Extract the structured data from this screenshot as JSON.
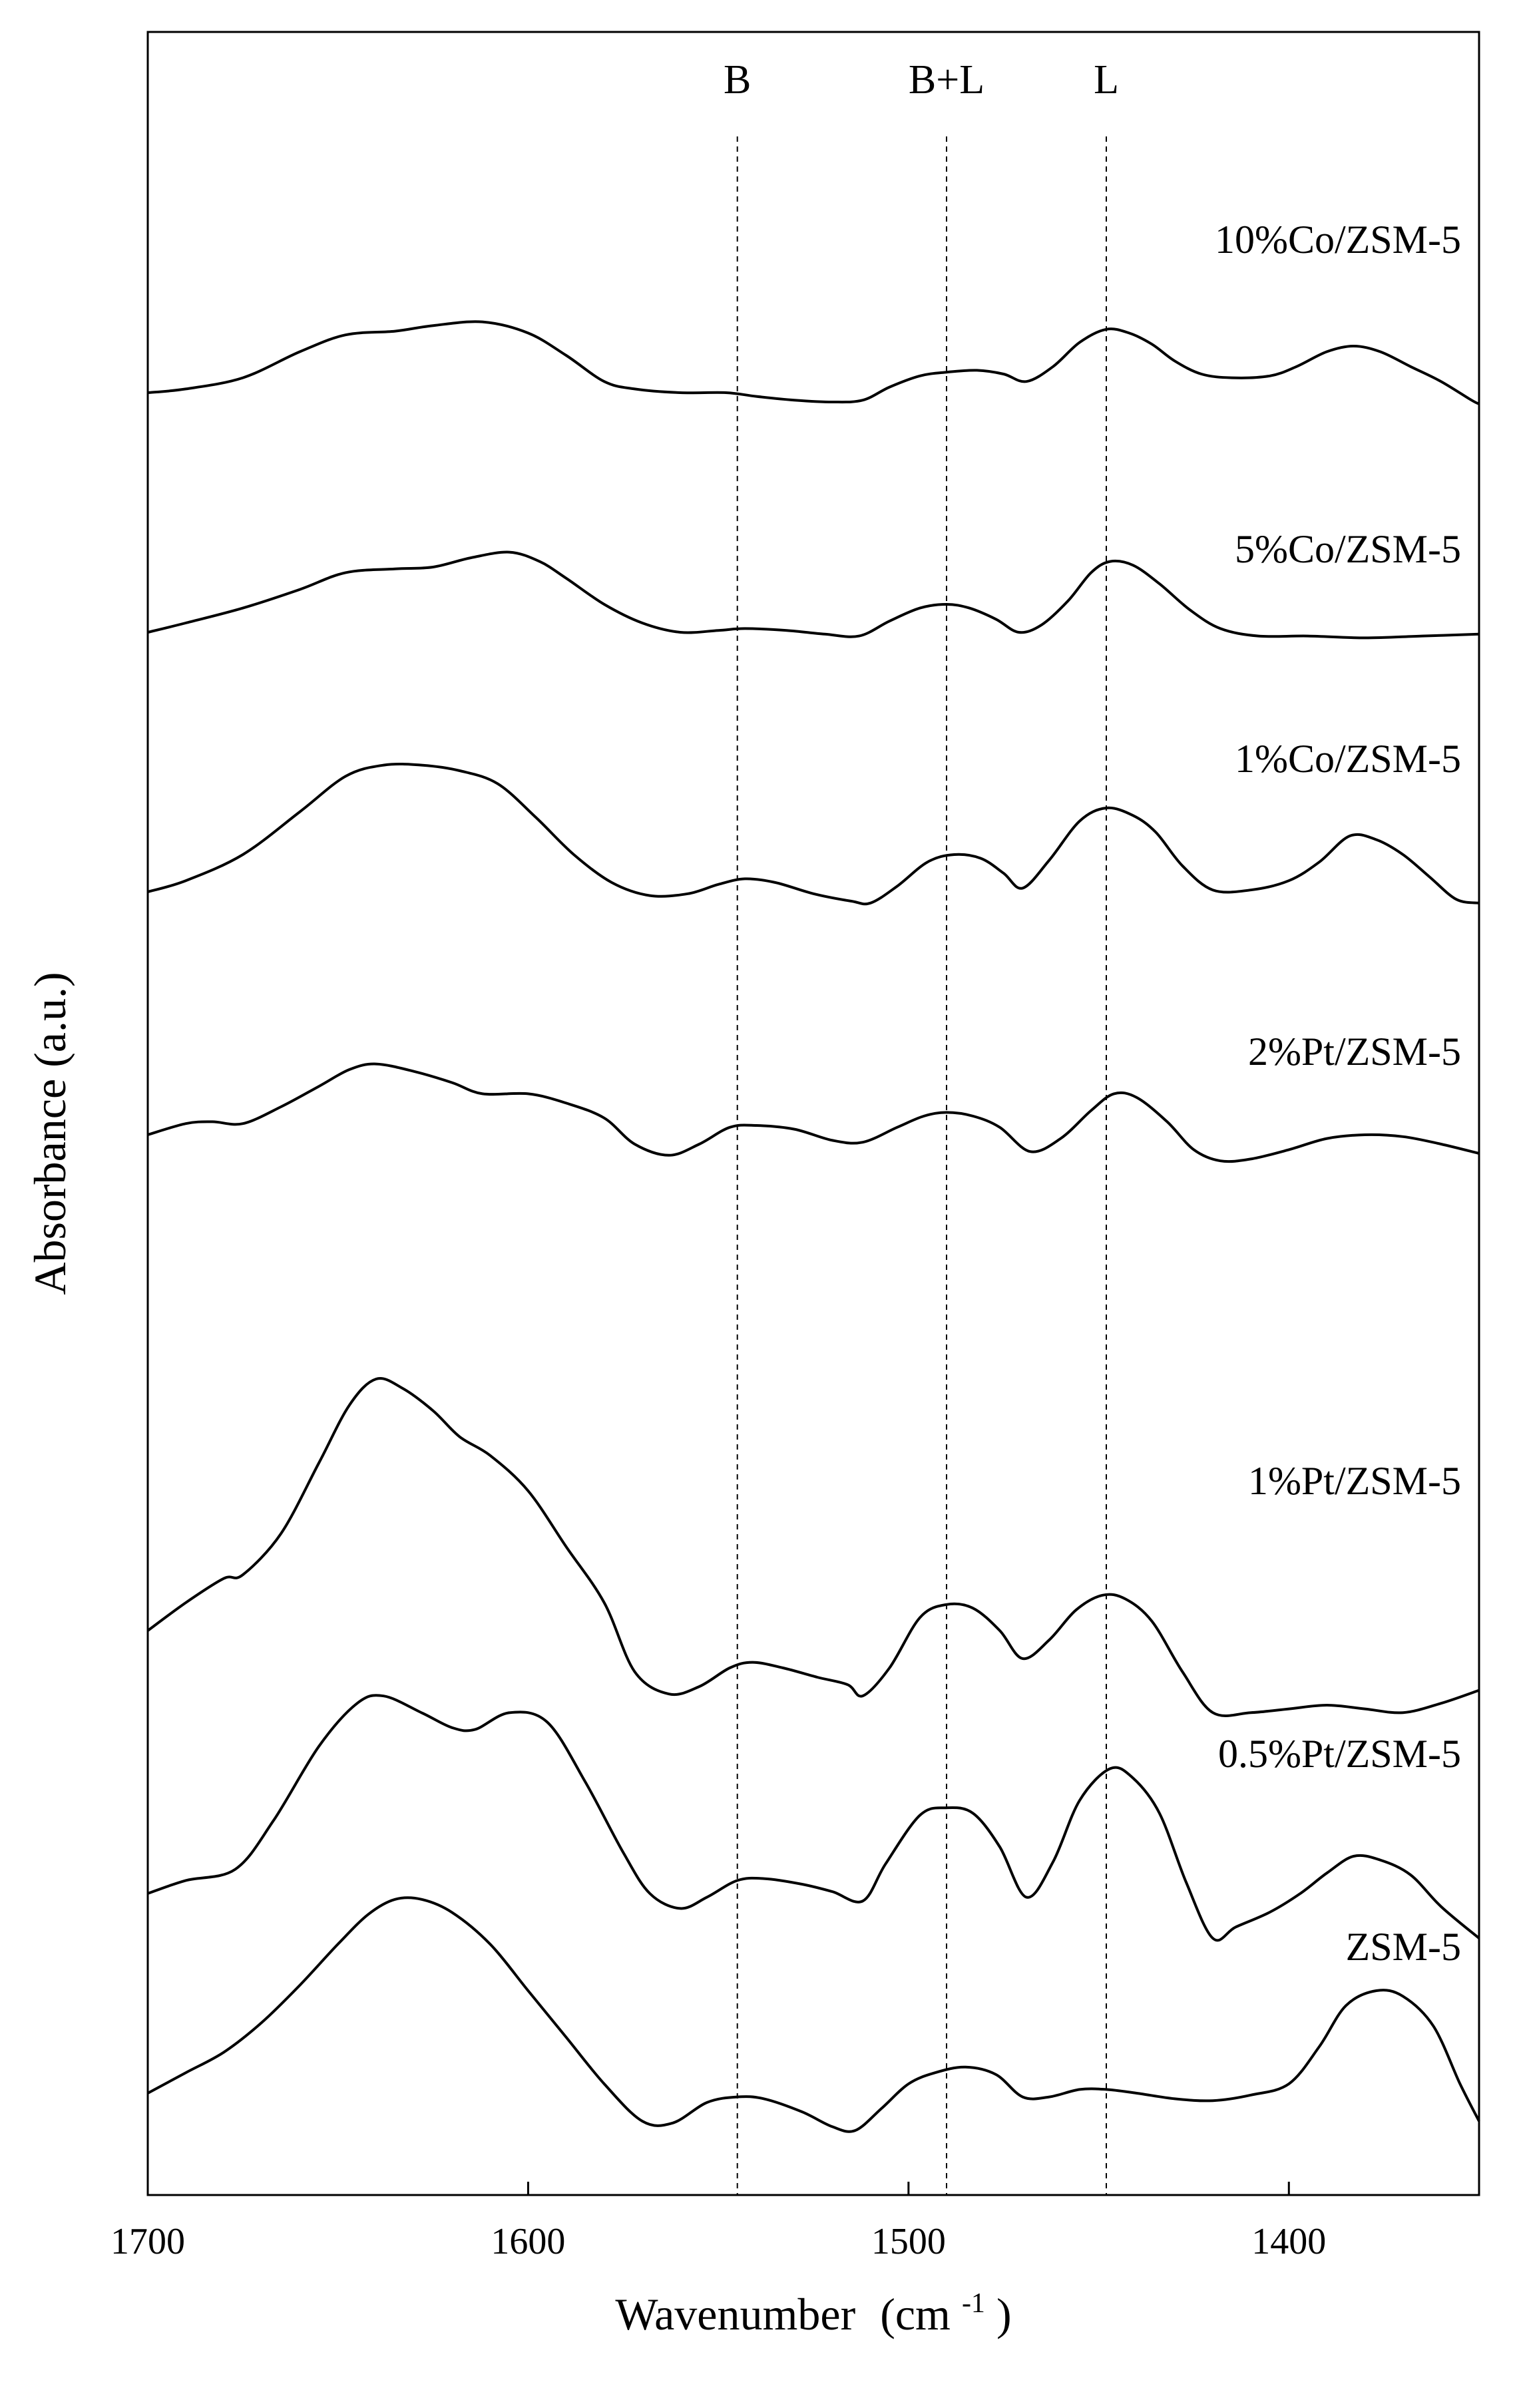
{
  "chart_data": {
    "type": "line",
    "title": "",
    "xlabel": "Wavenumber",
    "xlabel_unit_base": "(cm",
    "xlabel_unit_exp": "-1",
    "xlabel_unit_close": ")",
    "ylabel": "Absorbance (a.u.)",
    "xlim": [
      1700,
      1350
    ],
    "x_reversed": true,
    "yticks_shown": false,
    "xticks": [
      1700,
      1600,
      1500,
      1400
    ],
    "xtick_labels": [
      "1700",
      "1600",
      "1500",
      "1400"
    ],
    "reference_lines": [
      {
        "label": "B",
        "x": 1545
      },
      {
        "label": "B+L",
        "x": 1490
      },
      {
        "label": "L",
        "x": 1448
      }
    ],
    "series": [
      {
        "name": "10%Co/ZSM-5",
        "offset": 6,
        "points": [
          [
            1700,
            0.0
          ],
          [
            1690,
            0.02
          ],
          [
            1675,
            0.08
          ],
          [
            1660,
            0.22
          ],
          [
            1648,
            0.31
          ],
          [
            1635,
            0.33
          ],
          [
            1625,
            0.36
          ],
          [
            1612,
            0.38
          ],
          [
            1600,
            0.32
          ],
          [
            1590,
            0.2
          ],
          [
            1580,
            0.06
          ],
          [
            1572,
            0.02
          ],
          [
            1560,
            0.0
          ],
          [
            1548,
            0.0
          ],
          [
            1540,
            -0.02
          ],
          [
            1530,
            -0.04
          ],
          [
            1520,
            -0.05
          ],
          [
            1512,
            -0.04
          ],
          [
            1505,
            0.03
          ],
          [
            1497,
            0.09
          ],
          [
            1490,
            0.11
          ],
          [
            1482,
            0.12
          ],
          [
            1475,
            0.1
          ],
          [
            1469,
            0.06
          ],
          [
            1462,
            0.14
          ],
          [
            1455,
            0.27
          ],
          [
            1448,
            0.34
          ],
          [
            1442,
            0.32
          ],
          [
            1436,
            0.26
          ],
          [
            1430,
            0.17
          ],
          [
            1423,
            0.1
          ],
          [
            1415,
            0.08
          ],
          [
            1405,
            0.09
          ],
          [
            1398,
            0.14
          ],
          [
            1390,
            0.22
          ],
          [
            1383,
            0.25
          ],
          [
            1376,
            0.22
          ],
          [
            1368,
            0.14
          ],
          [
            1360,
            0.06
          ],
          [
            1352,
            -0.04
          ],
          [
            1350,
            -0.06
          ]
        ]
      },
      {
        "name": "5%Co/ZSM-5",
        "offset": 5,
        "points": [
          [
            1700,
            0.0
          ],
          [
            1690,
            0.05
          ],
          [
            1675,
            0.13
          ],
          [
            1660,
            0.23
          ],
          [
            1648,
            0.32
          ],
          [
            1635,
            0.34
          ],
          [
            1625,
            0.35
          ],
          [
            1615,
            0.4
          ],
          [
            1605,
            0.43
          ],
          [
            1597,
            0.38
          ],
          [
            1590,
            0.29
          ],
          [
            1580,
            0.15
          ],
          [
            1570,
            0.05
          ],
          [
            1560,
            0.0
          ],
          [
            1550,
            0.01
          ],
          [
            1543,
            0.02
          ],
          [
            1532,
            0.01
          ],
          [
            1522,
            -0.01
          ],
          [
            1513,
            -0.02
          ],
          [
            1505,
            0.06
          ],
          [
            1497,
            0.13
          ],
          [
            1490,
            0.15
          ],
          [
            1484,
            0.13
          ],
          [
            1477,
            0.07
          ],
          [
            1471,
            0.0
          ],
          [
            1465,
            0.04
          ],
          [
            1458,
            0.17
          ],
          [
            1452,
            0.32
          ],
          [
            1447,
            0.38
          ],
          [
            1441,
            0.36
          ],
          [
            1434,
            0.26
          ],
          [
            1426,
            0.12
          ],
          [
            1418,
            0.02
          ],
          [
            1408,
            -0.02
          ],
          [
            1395,
            -0.02
          ],
          [
            1380,
            -0.03
          ],
          [
            1365,
            -0.02
          ],
          [
            1350,
            -0.01
          ]
        ]
      },
      {
        "name": "1%Co/ZSM-5",
        "offset": 4,
        "points": [
          [
            1700,
            0.0
          ],
          [
            1690,
            0.06
          ],
          [
            1675,
            0.2
          ],
          [
            1660,
            0.43
          ],
          [
            1648,
            0.62
          ],
          [
            1638,
            0.68
          ],
          [
            1628,
            0.68
          ],
          [
            1618,
            0.65
          ],
          [
            1608,
            0.58
          ],
          [
            1598,
            0.4
          ],
          [
            1588,
            0.2
          ],
          [
            1578,
            0.05
          ],
          [
            1568,
            -0.02
          ],
          [
            1558,
            -0.01
          ],
          [
            1550,
            0.04
          ],
          [
            1543,
            0.07
          ],
          [
            1535,
            0.05
          ],
          [
            1525,
            -0.01
          ],
          [
            1515,
            -0.05
          ],
          [
            1510,
            -0.06
          ],
          [
            1503,
            0.03
          ],
          [
            1495,
            0.16
          ],
          [
            1488,
            0.2
          ],
          [
            1481,
            0.18
          ],
          [
            1475,
            0.1
          ],
          [
            1470,
            0.02
          ],
          [
            1463,
            0.17
          ],
          [
            1455,
            0.38
          ],
          [
            1448,
            0.45
          ],
          [
            1441,
            0.41
          ],
          [
            1435,
            0.32
          ],
          [
            1428,
            0.14
          ],
          [
            1420,
            0.01
          ],
          [
            1410,
            0.01
          ],
          [
            1400,
            0.06
          ],
          [
            1392,
            0.16
          ],
          [
            1384,
            0.3
          ],
          [
            1377,
            0.28
          ],
          [
            1370,
            0.2
          ],
          [
            1363,
            0.08
          ],
          [
            1356,
            -0.04
          ],
          [
            1350,
            -0.06
          ]
        ]
      },
      {
        "name": "2%Pt/ZSM-5",
        "offset": 3,
        "points": [
          [
            1700,
            0.0
          ],
          [
            1690,
            0.06
          ],
          [
            1683,
            0.07
          ],
          [
            1675,
            0.06
          ],
          [
            1665,
            0.15
          ],
          [
            1655,
            0.26
          ],
          [
            1647,
            0.35
          ],
          [
            1640,
            0.38
          ],
          [
            1630,
            0.34
          ],
          [
            1620,
            0.28
          ],
          [
            1612,
            0.22
          ],
          [
            1600,
            0.22
          ],
          [
            1590,
            0.17
          ],
          [
            1580,
            0.09
          ],
          [
            1572,
            -0.05
          ],
          [
            1563,
            -0.11
          ],
          [
            1555,
            -0.05
          ],
          [
            1547,
            0.04
          ],
          [
            1540,
            0.05
          ],
          [
            1530,
            0.03
          ],
          [
            1520,
            -0.03
          ],
          [
            1512,
            -0.04
          ],
          [
            1503,
            0.04
          ],
          [
            1496,
            0.1
          ],
          [
            1490,
            0.12
          ],
          [
            1483,
            0.1
          ],
          [
            1476,
            0.04
          ],
          [
            1468,
            -0.09
          ],
          [
            1460,
            -0.02
          ],
          [
            1452,
            0.13
          ],
          [
            1446,
            0.22
          ],
          [
            1440,
            0.2
          ],
          [
            1432,
            0.07
          ],
          [
            1425,
            -0.08
          ],
          [
            1418,
            -0.14
          ],
          [
            1410,
            -0.13
          ],
          [
            1400,
            -0.08
          ],
          [
            1390,
            -0.02
          ],
          [
            1380,
            0.0
          ],
          [
            1370,
            -0.01
          ],
          [
            1360,
            -0.05
          ],
          [
            1350,
            -0.1
          ]
        ]
      },
      {
        "name": "1%Pt/ZSM-5",
        "offset": 2,
        "points": [
          [
            1700,
            0.0
          ],
          [
            1690,
            0.15
          ],
          [
            1680,
            0.28
          ],
          [
            1675,
            0.3
          ],
          [
            1665,
            0.52
          ],
          [
            1655,
            0.9
          ],
          [
            1647,
            1.21
          ],
          [
            1640,
            1.35
          ],
          [
            1633,
            1.3
          ],
          [
            1625,
            1.18
          ],
          [
            1618,
            1.04
          ],
          [
            1610,
            0.94
          ],
          [
            1600,
            0.75
          ],
          [
            1590,
            0.45
          ],
          [
            1580,
            0.15
          ],
          [
            1572,
            -0.22
          ],
          [
            1563,
            -0.34
          ],
          [
            1555,
            -0.3
          ],
          [
            1547,
            -0.2
          ],
          [
            1541,
            -0.17
          ],
          [
            1533,
            -0.2
          ],
          [
            1524,
            -0.25
          ],
          [
            1516,
            -0.29
          ],
          [
            1512,
            -0.35
          ],
          [
            1505,
            -0.2
          ],
          [
            1497,
            0.07
          ],
          [
            1490,
            0.14
          ],
          [
            1483,
            0.12
          ],
          [
            1476,
            0.0
          ],
          [
            1470,
            -0.15
          ],
          [
            1463,
            -0.05
          ],
          [
            1456,
            0.11
          ],
          [
            1449,
            0.19
          ],
          [
            1443,
            0.17
          ],
          [
            1436,
            0.05
          ],
          [
            1428,
            -0.22
          ],
          [
            1420,
            -0.44
          ],
          [
            1410,
            -0.44
          ],
          [
            1400,
            -0.42
          ],
          [
            1390,
            -0.4
          ],
          [
            1380,
            -0.42
          ],
          [
            1370,
            -0.44
          ],
          [
            1360,
            -0.39
          ],
          [
            1350,
            -0.32
          ]
        ]
      },
      {
        "name": "0.5%Pt/ZSM-5",
        "offset": 1,
        "points": [
          [
            1700,
            0.0
          ],
          [
            1690,
            0.07
          ],
          [
            1677,
            0.13
          ],
          [
            1667,
            0.39
          ],
          [
            1655,
            0.79
          ],
          [
            1645,
            1.02
          ],
          [
            1638,
            1.06
          ],
          [
            1628,
            0.97
          ],
          [
            1620,
            0.89
          ],
          [
            1614,
            0.88
          ],
          [
            1605,
            0.97
          ],
          [
            1595,
            0.92
          ],
          [
            1585,
            0.6
          ],
          [
            1575,
            0.22
          ],
          [
            1568,
            0.0
          ],
          [
            1560,
            -0.08
          ],
          [
            1553,
            -0.02
          ],
          [
            1545,
            0.07
          ],
          [
            1538,
            0.08
          ],
          [
            1528,
            0.05
          ],
          [
            1520,
            0.01
          ],
          [
            1512,
            -0.04
          ],
          [
            1506,
            0.16
          ],
          [
            1497,
            0.42
          ],
          [
            1490,
            0.46
          ],
          [
            1483,
            0.43
          ],
          [
            1476,
            0.25
          ],
          [
            1469,
            -0.02
          ],
          [
            1462,
            0.17
          ],
          [
            1455,
            0.5
          ],
          [
            1447,
            0.67
          ],
          [
            1441,
            0.62
          ],
          [
            1434,
            0.43
          ],
          [
            1427,
            0.06
          ],
          [
            1420,
            -0.24
          ],
          [
            1414,
            -0.18
          ],
          [
            1405,
            -0.1
          ],
          [
            1397,
            0.0
          ],
          [
            1390,
            0.11
          ],
          [
            1383,
            0.2
          ],
          [
            1376,
            0.18
          ],
          [
            1368,
            0.1
          ],
          [
            1360,
            -0.07
          ],
          [
            1350,
            -0.24
          ]
        ]
      },
      {
        "name": "ZSM-5",
        "offset": 0,
        "points": [
          [
            1700,
            0.0
          ],
          [
            1690,
            0.11
          ],
          [
            1680,
            0.22
          ],
          [
            1670,
            0.38
          ],
          [
            1660,
            0.58
          ],
          [
            1650,
            0.8
          ],
          [
            1642,
            0.96
          ],
          [
            1635,
            1.04
          ],
          [
            1628,
            1.04
          ],
          [
            1620,
            0.97
          ],
          [
            1610,
            0.8
          ],
          [
            1600,
            0.55
          ],
          [
            1590,
            0.3
          ],
          [
            1580,
            0.05
          ],
          [
            1570,
            -0.15
          ],
          [
            1562,
            -0.16
          ],
          [
            1553,
            -0.05
          ],
          [
            1545,
            -0.02
          ],
          [
            1538,
            -0.03
          ],
          [
            1528,
            -0.1
          ],
          [
            1520,
            -0.18
          ],
          [
            1514,
            -0.2
          ],
          [
            1507,
            -0.08
          ],
          [
            1500,
            0.05
          ],
          [
            1493,
            0.11
          ],
          [
            1485,
            0.14
          ],
          [
            1477,
            0.1
          ],
          [
            1470,
            -0.02
          ],
          [
            1463,
            -0.02
          ],
          [
            1455,
            0.02
          ],
          [
            1448,
            0.02
          ],
          [
            1440,
            0.0
          ],
          [
            1430,
            -0.03
          ],
          [
            1420,
            -0.04
          ],
          [
            1410,
            -0.01
          ],
          [
            1400,
            0.05
          ],
          [
            1392,
            0.25
          ],
          [
            1385,
            0.47
          ],
          [
            1377,
            0.55
          ],
          [
            1370,
            0.52
          ],
          [
            1362,
            0.36
          ],
          [
            1355,
            0.05
          ],
          [
            1350,
            -0.15
          ]
        ]
      }
    ]
  }
}
